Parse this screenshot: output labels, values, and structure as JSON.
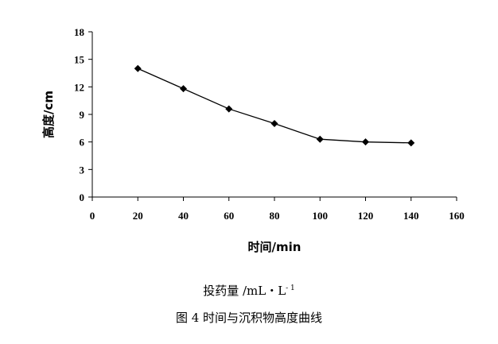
{
  "chart_data": {
    "type": "line",
    "x": [
      20,
      40,
      60,
      80,
      100,
      120,
      140
    ],
    "series": [
      {
        "values": [
          14.0,
          11.8,
          9.6,
          8.0,
          6.3,
          6.0,
          5.9
        ],
        "color": "#000000",
        "marker": "diamond"
      }
    ],
    "xlabel": "时间/min",
    "ylabel": "高度/cm",
    "xlim": [
      0,
      160
    ],
    "ylim": [
      0,
      18
    ],
    "xticks": [
      0,
      20,
      40,
      60,
      80,
      100,
      120,
      140,
      160
    ],
    "yticks": [
      0,
      3,
      6,
      9,
      12,
      15,
      18
    ],
    "grid": false,
    "legend": "none"
  },
  "captions": {
    "unit_text": "投药量 /mL・L",
    "unit_sup": "- 1",
    "figure_title": "图 4  时间与沉积物高度曲线"
  }
}
